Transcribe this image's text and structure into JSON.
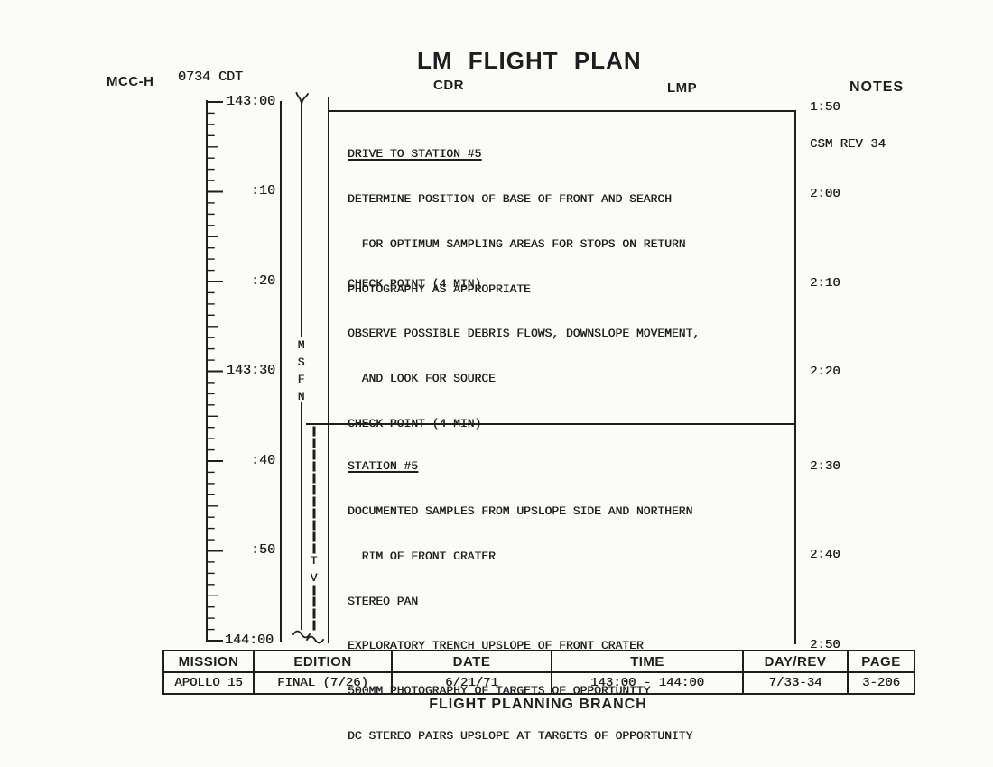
{
  "colors": {
    "paper": "#fbfbf8",
    "ink": "#1e1e1e"
  },
  "header": {
    "station_label": "MCC-H",
    "clock": "0734 CDT",
    "title": "LM FLIGHT PLAN",
    "cdr_header": "CDR",
    "lmp_header": "LMP",
    "notes_header": "NOTES"
  },
  "timeline": {
    "tick_labels": [
      "143:00",
      ":10",
      ":20",
      "143:30",
      ":40",
      ":50",
      "144:00"
    ],
    "msfn_label": "MSFN",
    "tv_label": "TV"
  },
  "activities": {
    "drive": {
      "title": "DRIVE TO STATION #5",
      "lines": [
        "DETERMINE POSITION OF BASE OF FRONT AND SEARCH",
        "  FOR OPTIMUM SAMPLING AREAS FOR STOPS ON RETURN",
        "PHOTOGRAPHY AS APPROPRIATE",
        "OBSERVE POSSIBLE DEBRIS FLOWS, DOWNSLOPE MOVEMENT,",
        "  AND LOOK FOR SOURCE",
        "CHECK POINT (4 MIN)"
      ]
    },
    "checkpoint2": "CHECK POINT (4 MIN)",
    "station5": {
      "title": "STATION #5",
      "lines": [
        "DOCUMENTED SAMPLES FROM UPSLOPE SIDE AND NORTHERN",
        "  RIM OF FRONT CRATER",
        "STEREO PAN",
        "EXPLORATORY TRENCH UPSLOPE OF FRONT CRATER",
        "500MM PHOTOGRAPHY OF TARGETS OF OPPORTUNITY",
        "DC STEREO PAIRS UPSLOPE AT TARGETS OF OPPORTUNITY"
      ]
    }
  },
  "notes": [
    "1:50",
    "CSM REV 34",
    "2:00",
    "2:10",
    "2:20",
    "2:30",
    "2:40",
    "2:50"
  ],
  "footer_table": {
    "headers": [
      "MISSION",
      "EDITION",
      "DATE",
      "TIME",
      "DAY/REV",
      "PAGE"
    ],
    "values": [
      "APOLLO 15",
      "FINAL (7/26)",
      "6/21/71",
      "143:00 - 144:00",
      "7/33-34",
      "3-206"
    ]
  },
  "footer_label": "FLIGHT PLANNING BRANCH"
}
